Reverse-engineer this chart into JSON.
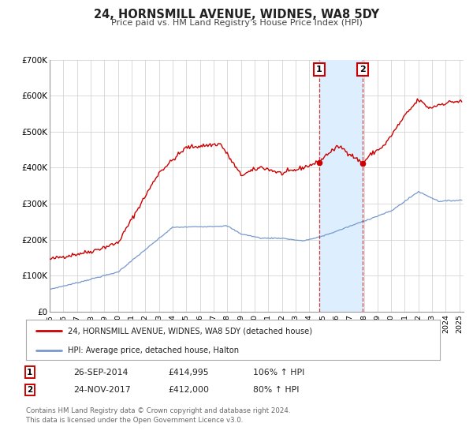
{
  "title": "24, HORNSMILL AVENUE, WIDNES, WA8 5DY",
  "subtitle": "Price paid vs. HM Land Registry's House Price Index (HPI)",
  "legend_line1": "24, HORNSMILL AVENUE, WIDNES, WA8 5DY (detached house)",
  "legend_line2": "HPI: Average price, detached house, Halton",
  "sale1_date": "26-SEP-2014",
  "sale1_price": 414995,
  "sale1_hpi": "106%",
  "sale2_date": "24-NOV-2017",
  "sale2_price": 412000,
  "sale2_hpi": "80%",
  "footnote": "Contains HM Land Registry data © Crown copyright and database right 2024.\nThis data is licensed under the Open Government Licence v3.0.",
  "red_color": "#cc0000",
  "blue_color": "#7799cc",
  "shaded_region_color": "#ddeeff",
  "ylim": [
    0,
    700000
  ],
  "ytick_labels": [
    "£0",
    "£100K",
    "£200K",
    "£300K",
    "£400K",
    "£500K",
    "£600K",
    "£700K"
  ],
  "ytick_values": [
    0,
    100000,
    200000,
    300000,
    400000,
    500000,
    600000,
    700000
  ],
  "sale1_x": 2014.74,
  "sale2_x": 2017.9,
  "xmin": 1995,
  "xmax": 2025.3
}
